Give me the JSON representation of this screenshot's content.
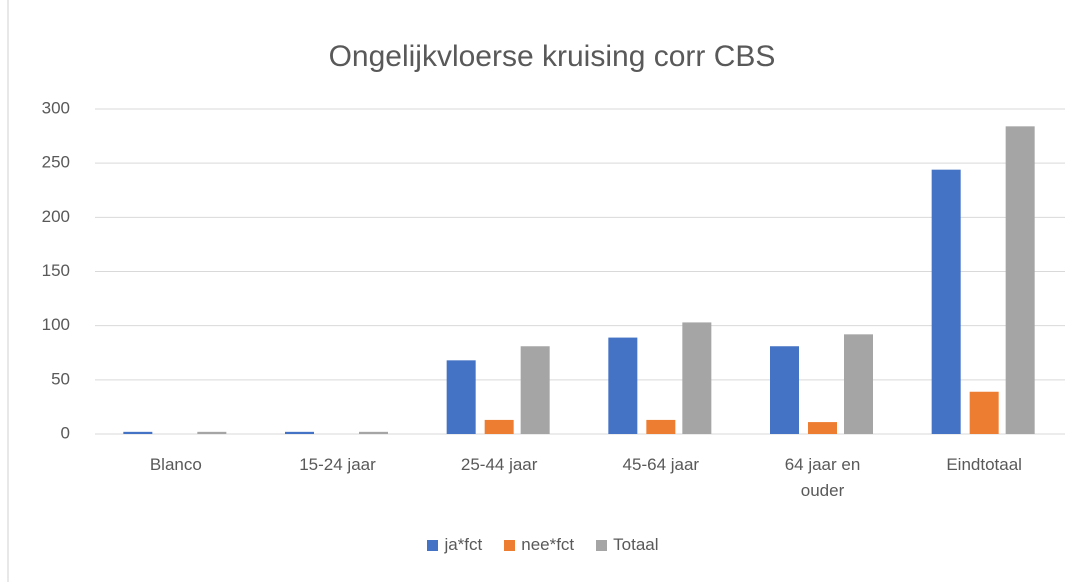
{
  "chart_data": {
    "type": "bar",
    "title": "Ongelijkvloerse kruising corr CBS",
    "categories": [
      "Blanco",
      "15-24 jaar",
      "25-44 jaar",
      "45-64 jaar",
      "64 jaar en ouder",
      "Eindtotaal"
    ],
    "series": [
      {
        "name": "ja*fct",
        "color": "#4472c4",
        "values": [
          2,
          2,
          68,
          89,
          81,
          244
        ]
      },
      {
        "name": "nee*fct",
        "color": "#ed7d31",
        "values": [
          0,
          0,
          13,
          13,
          11,
          39
        ]
      },
      {
        "name": "Totaal",
        "color": "#a5a5a5",
        "values": [
          2,
          2,
          81,
          103,
          92,
          284
        ]
      }
    ],
    "ylim": [
      0,
      300
    ],
    "yticks": [
      0,
      50,
      100,
      150,
      200,
      250,
      300
    ],
    "grid": true,
    "legend": "bottom"
  }
}
